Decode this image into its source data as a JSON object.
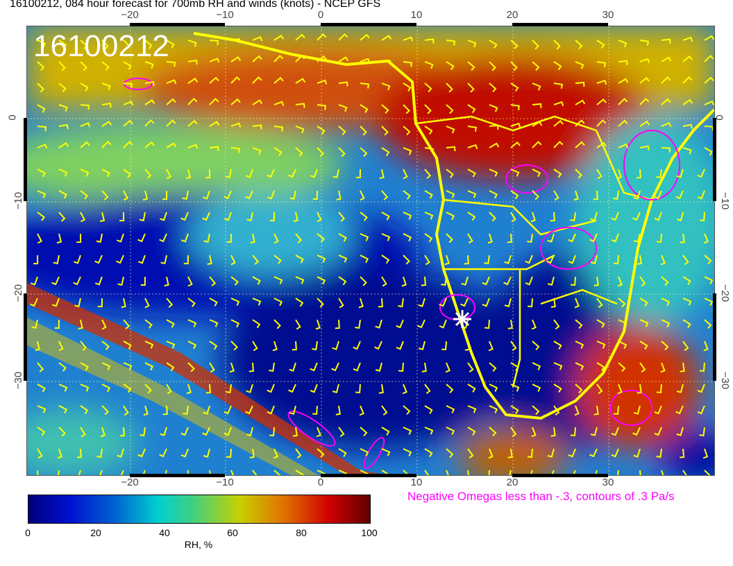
{
  "title": "16100212, 084 hour forecast for 700mb RH and winds (knots) - NCEP GFS",
  "stamp": "16100212",
  "lon_ticks": [
    "−20",
    "−10",
    "0",
    "10",
    "20",
    "30"
  ],
  "lat_ticks": [
    "0",
    "−10",
    "−20",
    "−30"
  ],
  "colorbar": {
    "ticks": [
      "0",
      "20",
      "40",
      "60",
      "80",
      "100"
    ],
    "label": "RH, %"
  },
  "note": "Negative Omegas less than -.3, contours of .3 Pa/s",
  "colors": {
    "coastline": "#ffff00",
    "omega_contours": "#ff00ff",
    "wind_barbs": "#ffff00",
    "marker": "#ffffff"
  }
}
